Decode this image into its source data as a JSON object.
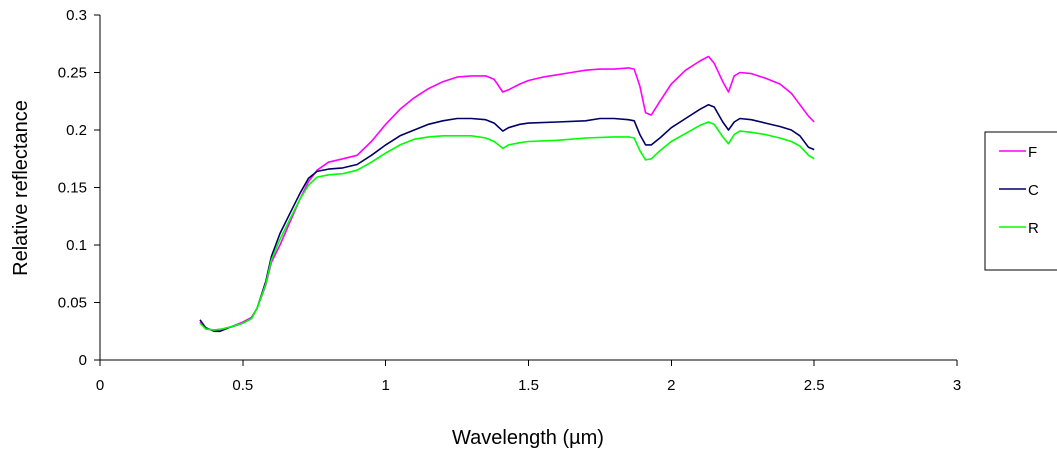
{
  "chart_data": {
    "type": "line",
    "title": "",
    "xlabel": "Wavelength (µm)",
    "ylabel": "Relative reflectance",
    "xlim": [
      0,
      3
    ],
    "ylim": [
      0,
      0.3
    ],
    "x_ticks": [
      "0",
      "0.5",
      "1",
      "1.5",
      "2",
      "2.5",
      "3"
    ],
    "y_ticks": [
      "0",
      "0.05",
      "0.1",
      "0.15",
      "0.2",
      "0.25",
      "0.3"
    ],
    "grid": false,
    "legend_position": "right",
    "series": [
      {
        "name": "F",
        "color": "#ff00ff",
        "points": [
          [
            0.35,
            0.033
          ],
          [
            0.37,
            0.027
          ],
          [
            0.4,
            0.026
          ],
          [
            0.43,
            0.027
          ],
          [
            0.46,
            0.029
          ],
          [
            0.5,
            0.033
          ],
          [
            0.53,
            0.037
          ],
          [
            0.55,
            0.045
          ],
          [
            0.58,
            0.065
          ],
          [
            0.6,
            0.085
          ],
          [
            0.63,
            0.1
          ],
          [
            0.66,
            0.117
          ],
          [
            0.7,
            0.14
          ],
          [
            0.73,
            0.155
          ],
          [
            0.76,
            0.165
          ],
          [
            0.8,
            0.172
          ],
          [
            0.85,
            0.175
          ],
          [
            0.9,
            0.178
          ],
          [
            0.95,
            0.19
          ],
          [
            1.0,
            0.205
          ],
          [
            1.05,
            0.218
          ],
          [
            1.1,
            0.228
          ],
          [
            1.15,
            0.236
          ],
          [
            1.2,
            0.242
          ],
          [
            1.25,
            0.246
          ],
          [
            1.3,
            0.247
          ],
          [
            1.35,
            0.247
          ],
          [
            1.38,
            0.244
          ],
          [
            1.41,
            0.233
          ],
          [
            1.43,
            0.235
          ],
          [
            1.47,
            0.24
          ],
          [
            1.5,
            0.243
          ],
          [
            1.55,
            0.246
          ],
          [
            1.6,
            0.248
          ],
          [
            1.65,
            0.25
          ],
          [
            1.7,
            0.252
          ],
          [
            1.75,
            0.253
          ],
          [
            1.8,
            0.253
          ],
          [
            1.85,
            0.254
          ],
          [
            1.87,
            0.253
          ],
          [
            1.89,
            0.238
          ],
          [
            1.91,
            0.215
          ],
          [
            1.93,
            0.213
          ],
          [
            1.96,
            0.225
          ],
          [
            2.0,
            0.24
          ],
          [
            2.05,
            0.252
          ],
          [
            2.1,
            0.26
          ],
          [
            2.13,
            0.264
          ],
          [
            2.15,
            0.258
          ],
          [
            2.18,
            0.242
          ],
          [
            2.2,
            0.233
          ],
          [
            2.22,
            0.247
          ],
          [
            2.24,
            0.25
          ],
          [
            2.28,
            0.249
          ],
          [
            2.33,
            0.245
          ],
          [
            2.38,
            0.24
          ],
          [
            2.42,
            0.232
          ],
          [
            2.45,
            0.222
          ],
          [
            2.48,
            0.212
          ],
          [
            2.5,
            0.207
          ]
        ]
      },
      {
        "name": "C",
        "color": "#000066",
        "points": [
          [
            0.35,
            0.035
          ],
          [
            0.37,
            0.028
          ],
          [
            0.4,
            0.025
          ],
          [
            0.42,
            0.025
          ],
          [
            0.45,
            0.028
          ],
          [
            0.5,
            0.032
          ],
          [
            0.53,
            0.036
          ],
          [
            0.55,
            0.045
          ],
          [
            0.58,
            0.068
          ],
          [
            0.6,
            0.09
          ],
          [
            0.63,
            0.11
          ],
          [
            0.66,
            0.125
          ],
          [
            0.7,
            0.145
          ],
          [
            0.73,
            0.158
          ],
          [
            0.76,
            0.164
          ],
          [
            0.8,
            0.166
          ],
          [
            0.85,
            0.167
          ],
          [
            0.9,
            0.17
          ],
          [
            0.95,
            0.178
          ],
          [
            1.0,
            0.187
          ],
          [
            1.05,
            0.195
          ],
          [
            1.1,
            0.2
          ],
          [
            1.15,
            0.205
          ],
          [
            1.2,
            0.208
          ],
          [
            1.25,
            0.21
          ],
          [
            1.3,
            0.21
          ],
          [
            1.35,
            0.209
          ],
          [
            1.38,
            0.206
          ],
          [
            1.41,
            0.199
          ],
          [
            1.43,
            0.202
          ],
          [
            1.47,
            0.205
          ],
          [
            1.5,
            0.206
          ],
          [
            1.6,
            0.207
          ],
          [
            1.7,
            0.208
          ],
          [
            1.75,
            0.21
          ],
          [
            1.8,
            0.21
          ],
          [
            1.85,
            0.209
          ],
          [
            1.87,
            0.208
          ],
          [
            1.89,
            0.196
          ],
          [
            1.91,
            0.187
          ],
          [
            1.93,
            0.187
          ],
          [
            1.96,
            0.193
          ],
          [
            2.0,
            0.202
          ],
          [
            2.05,
            0.21
          ],
          [
            2.1,
            0.218
          ],
          [
            2.13,
            0.222
          ],
          [
            2.15,
            0.22
          ],
          [
            2.18,
            0.207
          ],
          [
            2.2,
            0.2
          ],
          [
            2.22,
            0.207
          ],
          [
            2.24,
            0.21
          ],
          [
            2.28,
            0.209
          ],
          [
            2.33,
            0.206
          ],
          [
            2.38,
            0.203
          ],
          [
            2.42,
            0.2
          ],
          [
            2.45,
            0.195
          ],
          [
            2.48,
            0.185
          ],
          [
            2.5,
            0.183
          ]
        ]
      },
      {
        "name": "R",
        "color": "#00ff00",
        "points": [
          [
            0.35,
            0.032
          ],
          [
            0.37,
            0.027
          ],
          [
            0.4,
            0.026
          ],
          [
            0.43,
            0.027
          ],
          [
            0.46,
            0.029
          ],
          [
            0.5,
            0.032
          ],
          [
            0.53,
            0.036
          ],
          [
            0.55,
            0.045
          ],
          [
            0.58,
            0.066
          ],
          [
            0.6,
            0.087
          ],
          [
            0.63,
            0.105
          ],
          [
            0.66,
            0.12
          ],
          [
            0.7,
            0.14
          ],
          [
            0.73,
            0.152
          ],
          [
            0.76,
            0.159
          ],
          [
            0.8,
            0.161
          ],
          [
            0.85,
            0.162
          ],
          [
            0.9,
            0.165
          ],
          [
            0.95,
            0.172
          ],
          [
            1.0,
            0.18
          ],
          [
            1.05,
            0.187
          ],
          [
            1.1,
            0.192
          ],
          [
            1.15,
            0.194
          ],
          [
            1.2,
            0.195
          ],
          [
            1.25,
            0.195
          ],
          [
            1.3,
            0.195
          ],
          [
            1.35,
            0.193
          ],
          [
            1.38,
            0.19
          ],
          [
            1.41,
            0.184
          ],
          [
            1.43,
            0.187
          ],
          [
            1.47,
            0.189
          ],
          [
            1.5,
            0.19
          ],
          [
            1.6,
            0.191
          ],
          [
            1.7,
            0.193
          ],
          [
            1.8,
            0.194
          ],
          [
            1.85,
            0.194
          ],
          [
            1.87,
            0.193
          ],
          [
            1.89,
            0.182
          ],
          [
            1.91,
            0.174
          ],
          [
            1.93,
            0.175
          ],
          [
            1.96,
            0.182
          ],
          [
            2.0,
            0.19
          ],
          [
            2.05,
            0.197
          ],
          [
            2.1,
            0.204
          ],
          [
            2.13,
            0.207
          ],
          [
            2.15,
            0.205
          ],
          [
            2.18,
            0.194
          ],
          [
            2.2,
            0.188
          ],
          [
            2.22,
            0.196
          ],
          [
            2.24,
            0.199
          ],
          [
            2.28,
            0.198
          ],
          [
            2.33,
            0.196
          ],
          [
            2.38,
            0.193
          ],
          [
            2.42,
            0.19
          ],
          [
            2.45,
            0.186
          ],
          [
            2.48,
            0.178
          ],
          [
            2.5,
            0.175
          ]
        ]
      }
    ]
  }
}
